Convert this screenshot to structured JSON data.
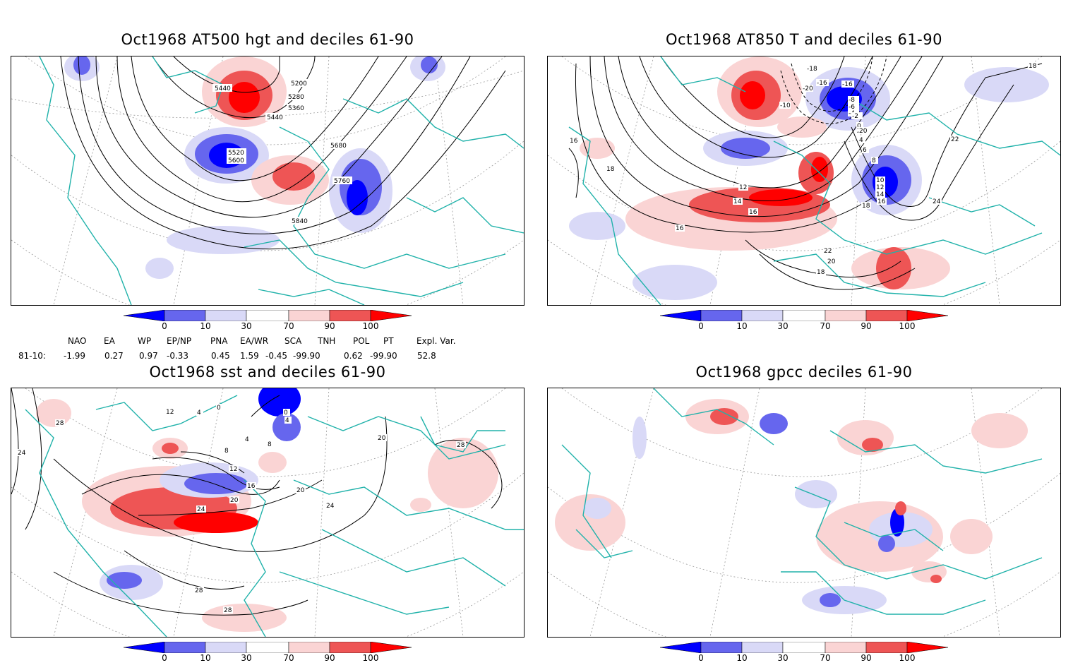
{
  "panels": [
    {
      "id": "p1",
      "title": "Oct1968 AT500 hgt and deciles 61-90",
      "contour_labels": [
        "5440",
        "5200",
        "5280",
        "5360",
        "5440",
        "5520",
        "5600",
        "5680",
        "5760",
        "5840"
      ]
    },
    {
      "id": "p2",
      "title": "Oct1968 AT850 T and deciles 61-90",
      "contour_labels": [
        "-20",
        "-18",
        "-16",
        "-10",
        "-8",
        "-6",
        "-4",
        "-2",
        "0",
        "2",
        "4",
        "6",
        "8",
        "10",
        "12",
        "14",
        "16",
        "18",
        "20",
        "22",
        "24",
        "16",
        "18",
        "12",
        "14",
        "16",
        "-16",
        "16",
        "22",
        "20",
        "18",
        "18"
      ]
    },
    {
      "id": "p3",
      "title": "Oct1968 sst and deciles 61-90",
      "contour_labels": [
        "28",
        "24",
        "12",
        "4",
        "0",
        "0",
        "4",
        "4",
        "8",
        "8",
        "12",
        "16",
        "20",
        "24",
        "20",
        "24",
        "20",
        "28",
        "28",
        "28"
      ]
    },
    {
      "id": "p4",
      "title": "Oct1968 gpcc deciles 61-90",
      "contour_labels": []
    }
  ],
  "colorbar": {
    "ticks": [
      "0",
      "10",
      "30",
      "70",
      "90",
      "100"
    ],
    "colors": {
      "dark_blue": "#0000ff",
      "mid_blue": "#6666ee",
      "light_blue": "#d9d9f7",
      "white": "#ffffff",
      "light_red": "#fad4d4",
      "mid_red": "#ee5555",
      "dark_red": "#ff0000"
    }
  },
  "indices": {
    "header": [
      "NAO",
      "EA",
      "WP",
      "EP/NP",
      "PNA",
      "EA/WR",
      "SCA",
      "TNH",
      "POL",
      "PT",
      "Expl. Var."
    ],
    "row_label": "81-10:",
    "values": [
      "-1.99",
      "0.27",
      "0.97",
      "-0.33",
      "0.45",
      "1.59",
      "-0.45",
      "-99.90",
      "0.62",
      "-99.90",
      "52.8"
    ]
  },
  "map_colors": {
    "coast": "#20b2aa",
    "contour": "#000000",
    "grid": "#999999"
  }
}
